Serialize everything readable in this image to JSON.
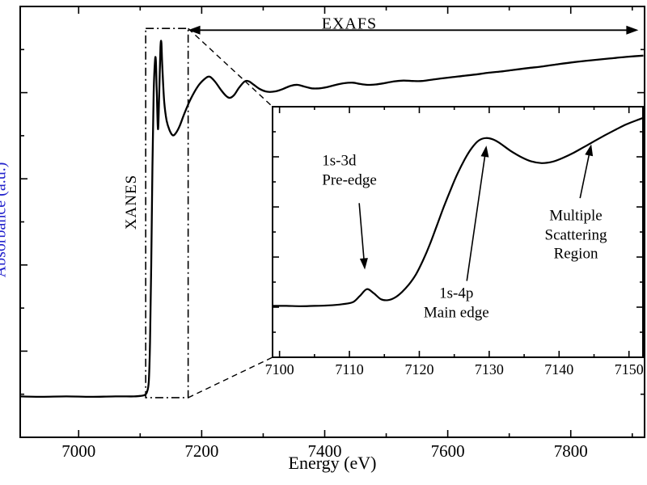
{
  "figure": {
    "bg_color": "#ffffff",
    "curve_color": "#000000",
    "annotation_color": "#000000",
    "ylabel_color": "#2323cc"
  },
  "chart_data": [
    {
      "id": "main-spectrum",
      "type": "line",
      "title": "",
      "xlabel": "Energy (eV)",
      "ylabel": "Absorbance (a.u.)",
      "xlim": [
        6905,
        7920
      ],
      "ylim": [
        0,
        1
      ],
      "grid": false,
      "legend": "none",
      "x_ticks_major": [
        7000,
        7200,
        7400,
        7600,
        7800
      ],
      "x_tick_labels": [
        "7000",
        "7200",
        "7400",
        "7600",
        "7800"
      ],
      "x_ticks_minor": [
        7100,
        7300,
        7500,
        7700,
        7900
      ],
      "y_ticks_major": [
        0.2,
        0.4,
        0.6,
        0.8
      ],
      "y_ticks_minor": [
        0.1,
        0.3,
        0.5,
        0.7,
        0.9
      ],
      "series": [
        {
          "name": "xafs-absorption-spectrum",
          "points": [
            [
              6905,
              0.095
            ],
            [
              6940,
              0.094
            ],
            [
              6980,
              0.095
            ],
            [
              7020,
              0.094
            ],
            [
              7060,
              0.095
            ],
            [
              7090,
              0.095
            ],
            [
              7100,
              0.096
            ],
            [
              7107,
              0.098
            ],
            [
              7111,
              0.105
            ],
            [
              7114,
              0.13
            ],
            [
              7116,
              0.22
            ],
            [
              7118,
              0.4
            ],
            [
              7120,
              0.63
            ],
            [
              7122,
              0.8
            ],
            [
              7124,
              0.872
            ],
            [
              7125.5,
              0.875
            ],
            [
              7127,
              0.8
            ],
            [
              7129,
              0.715
            ],
            [
              7131,
              0.8
            ],
            [
              7133,
              0.905
            ],
            [
              7134.5,
              0.915
            ],
            [
              7136,
              0.86
            ],
            [
              7139,
              0.78
            ],
            [
              7143,
              0.735
            ],
            [
              7148,
              0.712
            ],
            [
              7153,
              0.701
            ],
            [
              7158,
              0.706
            ],
            [
              7164,
              0.722
            ],
            [
              7172,
              0.752
            ],
            [
              7182,
              0.785
            ],
            [
              7194,
              0.815
            ],
            [
              7205,
              0.832
            ],
            [
              7213,
              0.837
            ],
            [
              7222,
              0.825
            ],
            [
              7232,
              0.805
            ],
            [
              7240,
              0.792
            ],
            [
              7246,
              0.788
            ],
            [
              7253,
              0.795
            ],
            [
              7261,
              0.812
            ],
            [
              7270,
              0.826
            ],
            [
              7277,
              0.826
            ],
            [
              7285,
              0.818
            ],
            [
              7295,
              0.808
            ],
            [
              7307,
              0.802
            ],
            [
              7320,
              0.803
            ],
            [
              7333,
              0.809
            ],
            [
              7345,
              0.816
            ],
            [
              7356,
              0.818
            ],
            [
              7367,
              0.814
            ],
            [
              7379,
              0.81
            ],
            [
              7391,
              0.81
            ],
            [
              7404,
              0.813
            ],
            [
              7418,
              0.818
            ],
            [
              7432,
              0.822
            ],
            [
              7446,
              0.823
            ],
            [
              7458,
              0.82
            ],
            [
              7470,
              0.818
            ],
            [
              7483,
              0.819
            ],
            [
              7497,
              0.822
            ],
            [
              7512,
              0.826
            ],
            [
              7528,
              0.828
            ],
            [
              7543,
              0.827
            ],
            [
              7558,
              0.827
            ],
            [
              7574,
              0.83
            ],
            [
              7590,
              0.833
            ],
            [
              7608,
              0.836
            ],
            [
              7626,
              0.839
            ],
            [
              7645,
              0.842
            ],
            [
              7665,
              0.846
            ],
            [
              7686,
              0.849
            ],
            [
              7708,
              0.853
            ],
            [
              7731,
              0.857
            ],
            [
              7755,
              0.861
            ],
            [
              7780,
              0.866
            ],
            [
              7806,
              0.871
            ],
            [
              7833,
              0.875
            ],
            [
              7861,
              0.879
            ],
            [
              7890,
              0.883
            ],
            [
              7918,
              0.886
            ]
          ]
        }
      ],
      "annotations": {
        "xanes": {
          "text": "XANES",
          "x": 7086,
          "y": 0.546,
          "rotation": -90
        },
        "exafs": {
          "text": "EXAFS",
          "label_x": 7440,
          "label_y": 0.959,
          "arrow_x1": 7178,
          "arrow_x2": 7910,
          "arrow_y": 0.945,
          "double_headed": true
        },
        "zoom_box": {
          "x0": 7109,
          "x1": 7178,
          "y0": 0.092,
          "y1": 0.949,
          "style": "dash-dot"
        }
      }
    },
    {
      "id": "xanes-inset",
      "type": "line",
      "title": "",
      "xlabel": "",
      "ylabel": "",
      "xlim": [
        7099,
        7152
      ],
      "ylim": [
        0,
        1
      ],
      "grid": false,
      "x_ticks_major": [
        7100,
        7110,
        7120,
        7130,
        7140,
        7150
      ],
      "x_tick_labels": [
        "7100",
        "7110",
        "7120",
        "7130",
        "7140",
        "7150"
      ],
      "x_ticks_minor": [
        7105,
        7115,
        7125,
        7135,
        7145
      ],
      "y_ticks_major": [
        0.2,
        0.4,
        0.6,
        0.8
      ],
      "y_ticks_minor": [
        0.1,
        0.3,
        0.5,
        0.7,
        0.9
      ],
      "series": [
        {
          "name": "xanes-detail",
          "points": [
            [
              7099,
              0.205
            ],
            [
              7101,
              0.205
            ],
            [
              7103,
              0.204
            ],
            [
              7105,
              0.205
            ],
            [
              7107,
              0.207
            ],
            [
              7109,
              0.212
            ],
            [
              7110.5,
              0.22
            ],
            [
              7111.5,
              0.245
            ],
            [
              7112.5,
              0.272
            ],
            [
              7113.5,
              0.255
            ],
            [
              7114.5,
              0.232
            ],
            [
              7115.5,
              0.228
            ],
            [
              7116.5,
              0.238
            ],
            [
              7117.5,
              0.26
            ],
            [
              7118.5,
              0.29
            ],
            [
              7119.5,
              0.33
            ],
            [
              7120.5,
              0.385
            ],
            [
              7121.5,
              0.45
            ],
            [
              7122.5,
              0.525
            ],
            [
              7123.5,
              0.6
            ],
            [
              7124.5,
              0.67
            ],
            [
              7125.5,
              0.735
            ],
            [
              7126.5,
              0.79
            ],
            [
              7127.5,
              0.835
            ],
            [
              7128.5,
              0.865
            ],
            [
              7129.5,
              0.875
            ],
            [
              7130.5,
              0.87
            ],
            [
              7131.5,
              0.855
            ],
            [
              7133,
              0.825
            ],
            [
              7134.5,
              0.8
            ],
            [
              7136,
              0.782
            ],
            [
              7137.5,
              0.775
            ],
            [
              7139,
              0.78
            ],
            [
              7140.5,
              0.795
            ],
            [
              7142,
              0.815
            ],
            [
              7143.5,
              0.838
            ],
            [
              7145,
              0.862
            ],
            [
              7146.5,
              0.885
            ],
            [
              7148,
              0.907
            ],
            [
              7149.5,
              0.928
            ],
            [
              7151,
              0.945
            ],
            [
              7152,
              0.955
            ]
          ]
        }
      ],
      "annotations": [
        {
          "id": "pre-edge",
          "label": "1s-3d\nPre-edge",
          "text_x": 7110.0,
          "text_y": 0.745,
          "arrow_from_x": 7111.4,
          "arrow_from_y": 0.615,
          "arrow_to_x": 7112.2,
          "arrow_to_y": 0.35
        },
        {
          "id": "main-edge",
          "label": "1s-4p\nMain edge",
          "text_x": 7125.3,
          "text_y": 0.216,
          "arrow_from_x": 7126.8,
          "arrow_from_y": 0.305,
          "arrow_to_x": 7129.6,
          "arrow_to_y": 0.845
        },
        {
          "id": "multiple-scattering",
          "label": "Multiple\nScattering\nRegion",
          "text_x": 7142.4,
          "text_y": 0.487,
          "arrow_from_x": 7143.0,
          "arrow_from_y": 0.635,
          "arrow_to_x": 7144.6,
          "arrow_to_y": 0.85
        }
      ]
    }
  ]
}
